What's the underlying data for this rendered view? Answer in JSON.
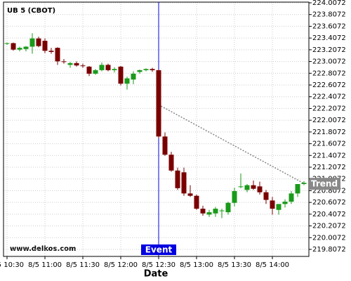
{
  "chart_data": {
    "type": "candlestick",
    "title": "UB 5 (CBOT)",
    "watermark": "www.delkos.com",
    "x_label": "Date",
    "categories": [
      "8/5 10:30",
      null,
      null,
      null,
      null,
      null,
      "8/5 11:00",
      null,
      null,
      null,
      null,
      null,
      "8/5 11:30",
      null,
      null,
      null,
      null,
      null,
      "8/5 12:00",
      null,
      null,
      null,
      null,
      null,
      "8/5 12:30",
      null,
      null,
      null,
      null,
      null,
      "8/5 13:00",
      null,
      null,
      null,
      null,
      null,
      "8/5 13:30",
      null,
      null,
      null,
      null,
      null,
      "8/5 14:00",
      null,
      null,
      null,
      null,
      null
    ],
    "open": [
      223.31,
      223.32,
      223.21,
      223.22,
      223.26,
      223.4,
      223.36,
      223.19,
      223.24,
      223.01,
      222.95,
      222.98,
      222.94,
      222.92,
      222.8,
      222.86,
      222.95,
      222.86,
      222.92,
      222.63,
      222.7,
      222.83,
      222.86,
      222.88,
      222.86,
      221.73,
      221.42,
      221.15,
      221.12,
      220.76,
      220.72,
      220.5,
      220.4,
      220.42,
      220.46,
      220.44,
      220.6,
      220.88,
      220.82,
      220.9,
      220.88,
      220.78,
      220.64,
      220.48,
      220.58,
      220.62,
      220.76,
      220.92
    ],
    "high": [
      223.33,
      223.33,
      223.26,
      223.27,
      223.49,
      223.43,
      223.4,
      223.24,
      223.25,
      223.05,
      223.0,
      223.01,
      222.97,
      222.93,
      222.88,
      222.99,
      222.97,
      222.91,
      222.93,
      222.75,
      222.84,
      222.87,
      222.89,
      222.9,
      222.87,
      221.8,
      221.47,
      221.2,
      221.2,
      220.9,
      220.74,
      220.55,
      220.48,
      220.53,
      220.5,
      220.62,
      220.86,
      221.1,
      220.92,
      220.98,
      220.96,
      220.82,
      220.7,
      220.56,
      220.66,
      220.8,
      220.92,
      220.97
    ],
    "low": [
      223.29,
      223.19,
      223.18,
      223.18,
      223.14,
      223.25,
      223.15,
      223.14,
      222.95,
      222.97,
      222.9,
      222.92,
      222.9,
      222.76,
      222.78,
      222.84,
      222.84,
      222.82,
      222.6,
      222.53,
      222.62,
      222.8,
      222.84,
      222.83,
      221.7,
      221.4,
      221.13,
      220.82,
      220.72,
      220.7,
      220.48,
      220.38,
      220.36,
      220.36,
      220.34,
      220.4,
      220.54,
      220.85,
      220.78,
      220.82,
      220.74,
      220.58,
      220.4,
      220.4,
      220.52,
      220.58,
      220.7,
      220.9
    ],
    "close": [
      223.32,
      223.21,
      223.24,
      223.26,
      223.4,
      223.27,
      223.19,
      223.17,
      223.01,
      223.0,
      222.98,
      222.94,
      222.93,
      222.8,
      222.86,
      222.95,
      222.86,
      222.88,
      222.63,
      222.72,
      222.8,
      222.86,
      222.88,
      222.86,
      221.73,
      221.42,
      221.15,
      220.85,
      220.76,
      220.72,
      220.5,
      220.42,
      220.44,
      220.5,
      220.47,
      220.6,
      220.8,
      220.88,
      220.9,
      220.84,
      220.78,
      220.65,
      220.5,
      220.58,
      220.62,
      220.76,
      220.92,
      220.94
    ],
    "up_color": "#1a9a1a",
    "down_color": "#7a0000",
    "ylim": [
      219.6875,
      224.0192
    ],
    "yticks": [
      219.8072,
      220.0072,
      220.2072,
      220.4072,
      220.6072,
      220.8072,
      221.0072,
      221.2072,
      221.4072,
      221.6072,
      221.8072,
      222.0072,
      222.2072,
      222.4072,
      222.6072,
      222.8072,
      223.0072,
      223.2072,
      223.4072,
      223.6072,
      223.8072,
      224.0072
    ],
    "grid": true,
    "event": {
      "label": "Event",
      "index": 24,
      "color": "#0000e0"
    },
    "trend": {
      "label": "Trend",
      "start_index": 24,
      "end_index": 47,
      "values": [
        222.27,
        220.93
      ],
      "color": "#888888"
    }
  }
}
